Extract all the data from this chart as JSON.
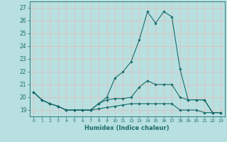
{
  "xlabel": "Humidex (Indice chaleur)",
  "bg_color": "#b8e0e0",
  "line_color": "#1a6b6b",
  "grid_color_major": "#e8b8b8",
  "xlim": [
    -0.5,
    23.5
  ],
  "ylim": [
    18.5,
    27.5
  ],
  "yticks": [
    19,
    20,
    21,
    22,
    23,
    24,
    25,
    26,
    27
  ],
  "xticks": [
    0,
    1,
    2,
    3,
    4,
    5,
    6,
    7,
    8,
    9,
    10,
    11,
    12,
    13,
    14,
    15,
    16,
    17,
    18,
    19,
    20,
    21,
    22,
    23
  ],
  "series": [
    [
      20.4,
      19.8,
      19.5,
      19.3,
      19.0,
      19.0,
      19.0,
      19.0,
      19.1,
      19.2,
      19.3,
      19.4,
      19.5,
      19.5,
      19.5,
      19.5,
      19.5,
      19.5,
      19.0,
      19.0,
      19.0,
      18.8,
      18.8,
      18.8
    ],
    [
      20.4,
      19.8,
      19.5,
      19.3,
      19.0,
      19.0,
      19.0,
      19.0,
      19.5,
      20.0,
      21.5,
      22.0,
      22.8,
      24.5,
      26.7,
      25.8,
      26.7,
      26.3,
      22.2,
      19.8,
      19.8,
      19.8,
      18.8,
      18.8
    ],
    [
      20.4,
      19.8,
      19.5,
      19.3,
      19.0,
      19.0,
      19.0,
      19.0,
      19.5,
      19.8,
      19.9,
      19.9,
      20.0,
      20.8,
      21.3,
      21.0,
      21.0,
      21.0,
      20.0,
      19.8,
      19.8,
      19.8,
      18.8,
      18.8
    ]
  ]
}
